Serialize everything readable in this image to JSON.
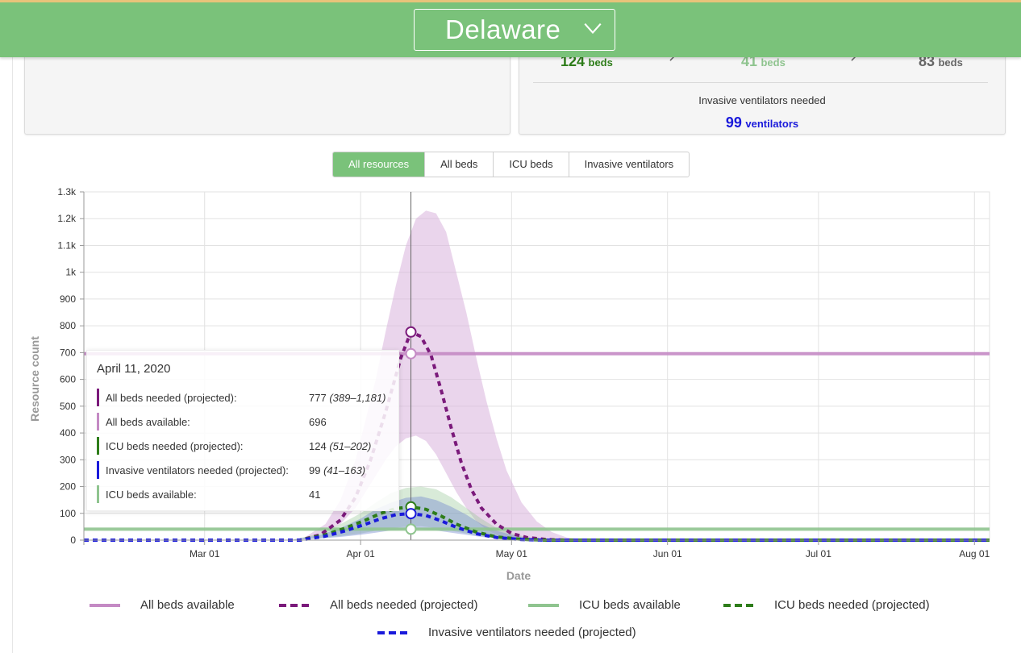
{
  "header": {
    "state": "Delaware",
    "select_icon": "chevron-down-icon"
  },
  "summary": {
    "beds": [
      {
        "num": "124",
        "unit": "beds",
        "color": "#2e7d1a"
      },
      {
        "num": "41",
        "unit": "beds",
        "color": "#8fc48f"
      },
      {
        "num": "83",
        "unit": "beds",
        "color": "#666666"
      }
    ],
    "vent_label": "Invasive ventilators needed",
    "vent_num": "99",
    "vent_unit": "ventilators",
    "vent_color": "#1a1adb"
  },
  "tabs": [
    {
      "label": "All resources",
      "active": true
    },
    {
      "label": "All beds",
      "active": false
    },
    {
      "label": "ICU beds",
      "active": false
    },
    {
      "label": "Invasive ventilators",
      "active": false
    }
  ],
  "tooltip": {
    "date": "April 11, 2020",
    "rows": [
      {
        "label": "All beds needed (projected):",
        "value": "777",
        "range": "(389–1,181)",
        "color": "#7b1a7b"
      },
      {
        "label": "All beds available:",
        "value": "696",
        "range": "",
        "color": "#c48ac4"
      },
      {
        "label": "ICU beds needed (projected):",
        "value": "124",
        "range": "(51–202)",
        "color": "#2e7d1a"
      },
      {
        "label": "Invasive ventilators needed (projected):",
        "value": "99",
        "range": "(41–163)",
        "color": "#1a1adb"
      },
      {
        "label": "ICU beds available:",
        "value": "41",
        "range": "",
        "color": "#8fc48f"
      }
    ]
  },
  "legend": [
    {
      "label": "All beds available",
      "color": "#c48ac4",
      "style": "solid"
    },
    {
      "label": "All beds needed (projected)",
      "color": "#7b1a7b",
      "style": "dashed"
    },
    {
      "label": "ICU beds available",
      "color": "#8fc48f",
      "style": "solid"
    },
    {
      "label": "ICU beds needed (projected)",
      "color": "#2e7d1a",
      "style": "dashed"
    },
    {
      "label": "Invasive ventilators needed (projected)",
      "color": "#1a1adb",
      "style": "dashed"
    }
  ],
  "chart_data": {
    "type": "line",
    "xlabel": "Date",
    "ylabel": "Resource count",
    "ylim": [
      0,
      1300
    ],
    "xlim": [
      "2020-02-06",
      "2020-08-04"
    ],
    "grid": true,
    "legend_position": "bottom",
    "x_ticks": [
      {
        "date": "2020-03-01",
        "label": "Mar 01"
      },
      {
        "date": "2020-04-01",
        "label": "Apr 01"
      },
      {
        "date": "2020-05-01",
        "label": "May 01"
      },
      {
        "date": "2020-06-01",
        "label": "Jun 01"
      },
      {
        "date": "2020-07-01",
        "label": "Jul 01"
      },
      {
        "date": "2020-08-01",
        "label": "Aug 01"
      }
    ],
    "y_ticks": [
      {
        "value": 0,
        "label": "0"
      },
      {
        "value": 100,
        "label": "100"
      },
      {
        "value": 200,
        "label": "200"
      },
      {
        "value": 300,
        "label": "300"
      },
      {
        "value": 400,
        "label": "400"
      },
      {
        "value": 500,
        "label": "500"
      },
      {
        "value": 600,
        "label": "600"
      },
      {
        "value": 700,
        "label": "700"
      },
      {
        "value": 800,
        "label": "800"
      },
      {
        "value": 900,
        "label": "900"
      },
      {
        "value": 1000,
        "label": "1k"
      },
      {
        "value": 1100,
        "label": "1.1k"
      },
      {
        "value": 1200,
        "label": "1.2k"
      },
      {
        "value": 1300,
        "label": "1.3k"
      }
    ],
    "hover_date": "2020-04-11",
    "bands": [
      {
        "name": "All beds needed (projected)",
        "color": "#d9b3dc",
        "opacity": 0.55,
        "x": [
          "2020-03-20",
          "2020-03-25",
          "2020-03-28",
          "2020-03-31",
          "2020-04-02",
          "2020-04-04",
          "2020-04-06",
          "2020-04-08",
          "2020-04-10",
          "2020-04-12",
          "2020-04-14",
          "2020-04-16",
          "2020-04-18",
          "2020-04-20",
          "2020-04-22",
          "2020-04-24",
          "2020-04-26",
          "2020-04-28",
          "2020-04-30",
          "2020-05-03",
          "2020-05-06",
          "2020-05-09",
          "2020-05-12",
          "2020-05-15",
          "2020-05-18"
        ],
        "low": [
          0,
          30,
          60,
          120,
          180,
          240,
          300,
          350,
          380,
          390,
          370,
          320,
          250,
          180,
          120,
          70,
          40,
          20,
          10,
          5,
          2,
          0,
          0,
          0,
          0
        ],
        "high": [
          0,
          60,
          150,
          300,
          450,
          600,
          780,
          950,
          1100,
          1200,
          1230,
          1220,
          1150,
          1000,
          850,
          680,
          520,
          380,
          260,
          140,
          70,
          30,
          10,
          3,
          0
        ]
      },
      {
        "name": "ICU beds needed (projected)",
        "color": "#8fc48f",
        "opacity": 0.35,
        "x": [
          "2020-03-18",
          "2020-03-24",
          "2020-03-28",
          "2020-04-01",
          "2020-04-04",
          "2020-04-07",
          "2020-04-10",
          "2020-04-13",
          "2020-04-16",
          "2020-04-19",
          "2020-04-22",
          "2020-04-25",
          "2020-04-28",
          "2020-05-02",
          "2020-05-06",
          "2020-05-10"
        ],
        "low": [
          0,
          8,
          15,
          25,
          35,
          45,
          50,
          52,
          45,
          35,
          25,
          15,
          8,
          3,
          0,
          0
        ],
        "high": [
          0,
          25,
          60,
          100,
          140,
          175,
          195,
          200,
          190,
          160,
          120,
          80,
          45,
          20,
          5,
          0
        ]
      },
      {
        "name": "Invasive ventilators needed (projected)",
        "color": "#7a8fd0",
        "opacity": 0.45,
        "x": [
          "2020-03-18",
          "2020-03-24",
          "2020-03-28",
          "2020-04-01",
          "2020-04-04",
          "2020-04-07",
          "2020-04-10",
          "2020-04-13",
          "2020-04-16",
          "2020-04-19",
          "2020-04-22",
          "2020-04-25",
          "2020-04-28",
          "2020-05-02",
          "2020-05-06",
          "2020-05-10"
        ],
        "low": [
          0,
          6,
          12,
          20,
          28,
          36,
          40,
          41,
          36,
          28,
          20,
          12,
          6,
          2,
          0,
          0
        ],
        "high": [
          0,
          20,
          45,
          80,
          115,
          140,
          158,
          163,
          150,
          125,
          95,
          60,
          35,
          15,
          3,
          0
        ]
      }
    ],
    "series": [
      {
        "name": "All beds available",
        "color": "#c48ac4",
        "style": "solid",
        "x": [
          "2020-02-06",
          "2020-08-04"
        ],
        "values": [
          696,
          696
        ]
      },
      {
        "name": "ICU beds available",
        "color": "#8fc48f",
        "style": "solid",
        "x": [
          "2020-02-06",
          "2020-08-04"
        ],
        "values": [
          41,
          41
        ]
      },
      {
        "name": "All beds needed (projected)",
        "color": "#7b1a7b",
        "style": "dashed",
        "x": [
          "2020-02-06",
          "2020-03-20",
          "2020-03-24",
          "2020-03-28",
          "2020-03-31",
          "2020-04-03",
          "2020-04-06",
          "2020-04-09",
          "2020-04-11",
          "2020-04-13",
          "2020-04-15",
          "2020-04-17",
          "2020-04-19",
          "2020-04-21",
          "2020-04-23",
          "2020-04-25",
          "2020-04-28",
          "2020-05-01",
          "2020-05-04",
          "2020-05-08",
          "2020-05-12",
          "2020-08-04"
        ],
        "values": [
          0,
          0,
          20,
          75,
          160,
          300,
          480,
          680,
          777,
          760,
          690,
          560,
          420,
          290,
          190,
          120,
          60,
          25,
          10,
          2,
          0,
          0
        ]
      },
      {
        "name": "ICU beds needed (projected)",
        "color": "#2e7d1a",
        "style": "dashed",
        "x": [
          "2020-02-06",
          "2020-03-20",
          "2020-03-25",
          "2020-03-29",
          "2020-04-02",
          "2020-04-05",
          "2020-04-08",
          "2020-04-11",
          "2020-04-14",
          "2020-04-17",
          "2020-04-20",
          "2020-04-24",
          "2020-04-28",
          "2020-05-03",
          "2020-05-08",
          "2020-08-04"
        ],
        "values": [
          0,
          0,
          20,
          45,
          75,
          100,
          118,
          124,
          115,
          90,
          60,
          30,
          12,
          3,
          0,
          0
        ]
      },
      {
        "name": "Invasive ventilators needed (projected)",
        "color": "#1a1adb",
        "style": "dashed",
        "x": [
          "2020-02-06",
          "2020-03-20",
          "2020-03-25",
          "2020-03-29",
          "2020-04-02",
          "2020-04-05",
          "2020-04-08",
          "2020-04-11",
          "2020-04-14",
          "2020-04-17",
          "2020-04-20",
          "2020-04-24",
          "2020-04-28",
          "2020-05-03",
          "2020-05-08",
          "2020-08-04"
        ],
        "values": [
          0,
          0,
          15,
          35,
          60,
          80,
          95,
          99,
          92,
          72,
          48,
          24,
          10,
          2,
          0,
          0
        ]
      }
    ],
    "hover_points": [
      {
        "series": "All beds needed (projected)",
        "value": 777,
        "color": "#7b1a7b"
      },
      {
        "series": "All beds available",
        "value": 696,
        "color": "#c48ac4"
      },
      {
        "series": "ICU beds needed (projected)",
        "value": 124,
        "color": "#2e7d1a"
      },
      {
        "series": "Invasive ventilators needed (projected)",
        "value": 99,
        "color": "#1a1adb"
      },
      {
        "series": "ICU beds available",
        "value": 41,
        "color": "#8fc48f"
      }
    ]
  }
}
